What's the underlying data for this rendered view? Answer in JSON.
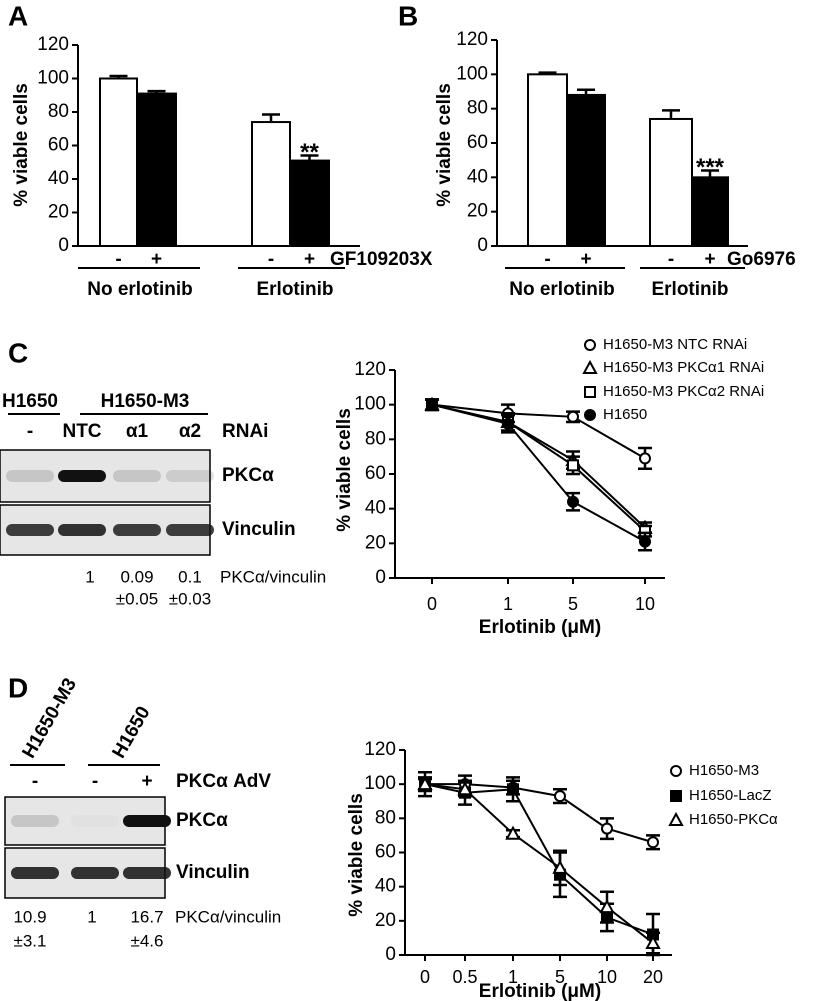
{
  "panels": [
    "A",
    "B",
    "C",
    "D"
  ],
  "chart_data": [
    {
      "type": "bar",
      "ylabel": "% viable cells",
      "ylim": [
        0,
        120
      ],
      "yticks": [
        0,
        20,
        40,
        60,
        80,
        100,
        120
      ],
      "categories": [
        "No erlotinib",
        "Erlotinib"
      ],
      "treatment": "GF109203X",
      "series": [
        {
          "label": "-",
          "color": "#ffffff",
          "values": [
            100,
            74
          ],
          "errors": [
            1.5,
            4.5
          ]
        },
        {
          "label": "+",
          "color": "#000000",
          "values": [
            91,
            51
          ],
          "errors": [
            1.5,
            3
          ],
          "annotations": [
            null,
            "**"
          ]
        }
      ]
    },
    {
      "type": "bar",
      "ylabel": "% viable cells",
      "ylim": [
        0,
        120
      ],
      "yticks": [
        0,
        20,
        40,
        60,
        80,
        100,
        120
      ],
      "categories": [
        "No erlotinib",
        "Erlotinib"
      ],
      "treatment": "Go6976",
      "series": [
        {
          "label": "-",
          "color": "#ffffff",
          "values": [
            100,
            74
          ],
          "errors": [
            1,
            5
          ]
        },
        {
          "label": "+",
          "color": "#000000",
          "values": [
            88,
            40
          ],
          "errors": [
            3,
            4
          ],
          "annotations": [
            null,
            "***"
          ]
        }
      ]
    },
    {
      "type": "line",
      "ylabel": "% viable cells",
      "xlabel": "Erlotinib (μM)",
      "ylim": [
        0,
        120
      ],
      "yticks": [
        0,
        20,
        40,
        60,
        80,
        100,
        120
      ],
      "categories": [
        "0",
        "1",
        "5",
        "10"
      ],
      "series": [
        {
          "name": "H1650-M3 NTC RNAi",
          "marker": "open-circle",
          "color": "#000000",
          "values": [
            100,
            95,
            93,
            69
          ],
          "errors": [
            3,
            5,
            3,
            6
          ]
        },
        {
          "name": "H1650-M3 PKCα1 RNAi",
          "marker": "open-triangle",
          "color": "#000000",
          "values": [
            100,
            90,
            68,
            29
          ],
          "errors": [
            3,
            5,
            5,
            3
          ]
        },
        {
          "name": "H1650-M3 PKCα2 RNAi",
          "marker": "open-square",
          "color": "#000000",
          "values": [
            100,
            90,
            65,
            27
          ],
          "errors": [
            3,
            5,
            5,
            3
          ]
        },
        {
          "name": "H1650",
          "marker": "filled-circle",
          "color": "#000000",
          "values": [
            100,
            89,
            44,
            21
          ],
          "errors": [
            3,
            5,
            5,
            5
          ]
        }
      ]
    },
    {
      "type": "line",
      "ylabel": "% viable cells",
      "xlabel": "Erlotinib (μM)",
      "ylim": [
        0,
        120
      ],
      "yticks": [
        0,
        20,
        40,
        60,
        80,
        100,
        120
      ],
      "categories": [
        "0",
        "0.5",
        "1",
        "5",
        "10",
        "20"
      ],
      "series": [
        {
          "name": "H1650-M3",
          "marker": "open-circle",
          "color": "#000000",
          "values": [
            100,
            100,
            98,
            93,
            74,
            66
          ],
          "errors": [
            3,
            5,
            4,
            4,
            6,
            4
          ]
        },
        {
          "name": "H1650-LacZ",
          "marker": "filled-square",
          "color": "#000000",
          "values": [
            100,
            95,
            97,
            47,
            22,
            12
          ],
          "errors": [
            7,
            7,
            7,
            13,
            8,
            12
          ]
        },
        {
          "name": "H1650-PKCα",
          "marker": "open-triangle",
          "color": "#000000",
          "values": [
            100,
            97,
            71,
            51,
            28,
            7
          ],
          "errors": [
            4,
            4,
            2,
            10,
            9,
            6
          ]
        }
      ]
    }
  ],
  "blot_c": {
    "cell_lines": [
      "H1650",
      "H1650-M3"
    ],
    "lanes": [
      "-",
      "NTC",
      "α1",
      "α2"
    ],
    "lane_title": "RNAi",
    "rows": [
      "PKCα",
      "Vinculin"
    ],
    "quantification": [
      "1",
      "0.09",
      "0.1"
    ],
    "quant_errors": [
      null,
      "±0.05",
      "±0.03"
    ],
    "quant_label": "PKCα/vinculin"
  },
  "blot_d": {
    "cell_lines": [
      "H1650-M3",
      "H1650"
    ],
    "lanes": [
      "-",
      "-",
      "+"
    ],
    "lane_title": "PKCα AdV",
    "rows": [
      "PKCα",
      "Vinculin"
    ],
    "quantification": [
      "10.9",
      "1",
      "16.7"
    ],
    "quant_errors": [
      "±3.1",
      null,
      "±4.6"
    ],
    "quant_label": "PKCα/vinculin"
  }
}
